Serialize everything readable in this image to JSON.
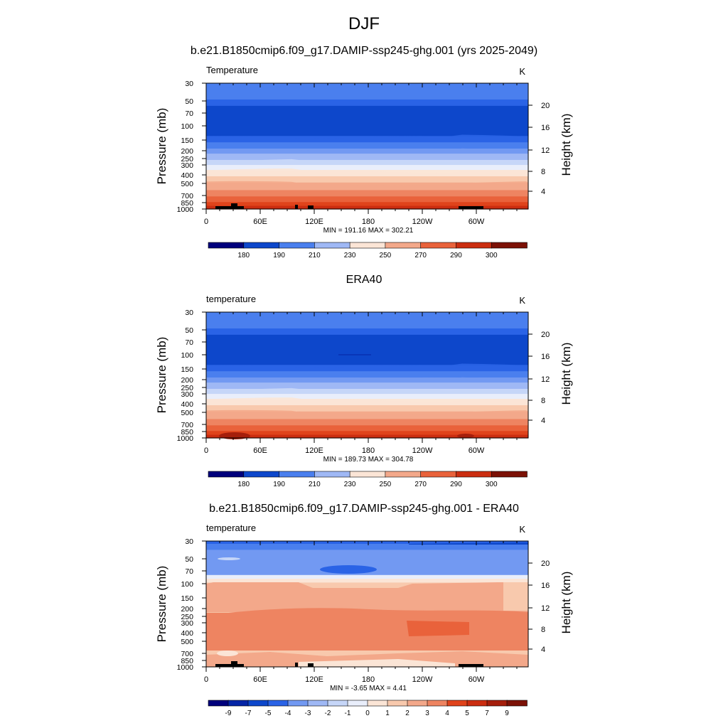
{
  "page_title": "DJF",
  "panel_titles": [
    "b.e21.B1850cmip6.f09_g17.DAMIP-ssp245-ghg.001 (yrs 2025-2049)",
    "ERA40",
    "b.e21.B1850cmip6.f09_g17.DAMIP-ssp245-ghg.001 - ERA40"
  ],
  "colors": {
    "abs_scale": [
      "#00007c",
      "#0525a6",
      "#0d47cb",
      "#2a63e6",
      "#4a7fee",
      "#7299f2",
      "#9fb8f5",
      "#c6d6f8",
      "#e9eefb",
      "#fbe5d6",
      "#f8c9ad",
      "#f3a88a",
      "#ee8461",
      "#e9623b",
      "#e0431b",
      "#cb2d10",
      "#a51e0b",
      "#7c1106"
    ],
    "diff_scale": [
      "#00007c",
      "#0525a6",
      "#0d47cb",
      "#2a63e6",
      "#4a7fee",
      "#7299f2",
      "#9fb8f5",
      "#c6d6f8",
      "#e9eefb",
      "#fbe5d6",
      "#f8c9ad",
      "#f3a88a",
      "#ee8461",
      "#e9623b",
      "#e0431b",
      "#cb2d10",
      "#a51e0b",
      "#7c1106"
    ],
    "topography": "#000000"
  },
  "chart_data": [
    {
      "type": "contour",
      "title": "b.e21.B1850cmip6.f09_g17.DAMIP-ssp245-ghg.001 (yrs 2025-2049)",
      "left_label": "Temperature",
      "units": "K",
      "ylabel": "Pressure (mb)",
      "ylabel_right": "Height (km)",
      "y_ticks": [
        30,
        50,
        70,
        100,
        150,
        200,
        250,
        300,
        400,
        500,
        700,
        850,
        1000
      ],
      "y_right_ticks": [
        4,
        8,
        12,
        16,
        20
      ],
      "x_ticks": [
        "0",
        "60E",
        "120E",
        "180",
        "120W",
        "60W"
      ],
      "stats": "MIN = 191.16  MAX = 302.21",
      "colorbar_labels": [
        "180",
        "190",
        "210",
        "230",
        "250",
        "270",
        "290",
        "300"
      ],
      "bands_by_pressure": [
        {
          "p": 30,
          "value": 210
        },
        {
          "p": 50,
          "value": 200
        },
        {
          "p": 100,
          "value": 200
        },
        {
          "p": 150,
          "value": 210
        },
        {
          "p": 200,
          "value": 220
        },
        {
          "p": 250,
          "value": 230
        },
        {
          "p": 300,
          "value": 240
        },
        {
          "p": 400,
          "value": 250
        },
        {
          "p": 500,
          "value": 260
        },
        {
          "p": 700,
          "value": 270
        },
        {
          "p": 850,
          "value": 280
        },
        {
          "p": 1000,
          "value": 290
        }
      ]
    },
    {
      "type": "contour",
      "title": "ERA40",
      "left_label": "temperature",
      "units": "K",
      "ylabel": "Pressure (mb)",
      "ylabel_right": "Height (km)",
      "y_ticks": [
        30,
        50,
        70,
        100,
        150,
        200,
        250,
        300,
        400,
        500,
        700,
        850,
        1000
      ],
      "y_right_ticks": [
        4,
        8,
        12,
        16,
        20
      ],
      "x_ticks": [
        "0",
        "60E",
        "120E",
        "180",
        "120W",
        "60W"
      ],
      "stats": "MIN = 189.73  MAX = 304.78",
      "colorbar_labels": [
        "180",
        "190",
        "210",
        "230",
        "250",
        "270",
        "290",
        "300"
      ]
    },
    {
      "type": "contour",
      "title": "b.e21.B1850cmip6.f09_g17.DAMIP-ssp245-ghg.001 - ERA40",
      "left_label": "temperature",
      "units": "K",
      "ylabel": "Pressure (mb)",
      "ylabel_right": "Height (km)",
      "y_ticks": [
        30,
        50,
        70,
        100,
        150,
        200,
        250,
        300,
        400,
        500,
        700,
        850,
        1000
      ],
      "y_right_ticks": [
        4,
        8,
        12,
        16,
        20
      ],
      "x_ticks": [
        "0",
        "60E",
        "120E",
        "180",
        "120W",
        "60W"
      ],
      "stats": "MIN =  -3.65  MAX =   4.41",
      "colorbar_labels": [
        "-9",
        "-7",
        "-5",
        "-4",
        "-3",
        "-2",
        "-1",
        "0",
        "1",
        "2",
        "3",
        "4",
        "5",
        "7",
        "9"
      ]
    }
  ]
}
